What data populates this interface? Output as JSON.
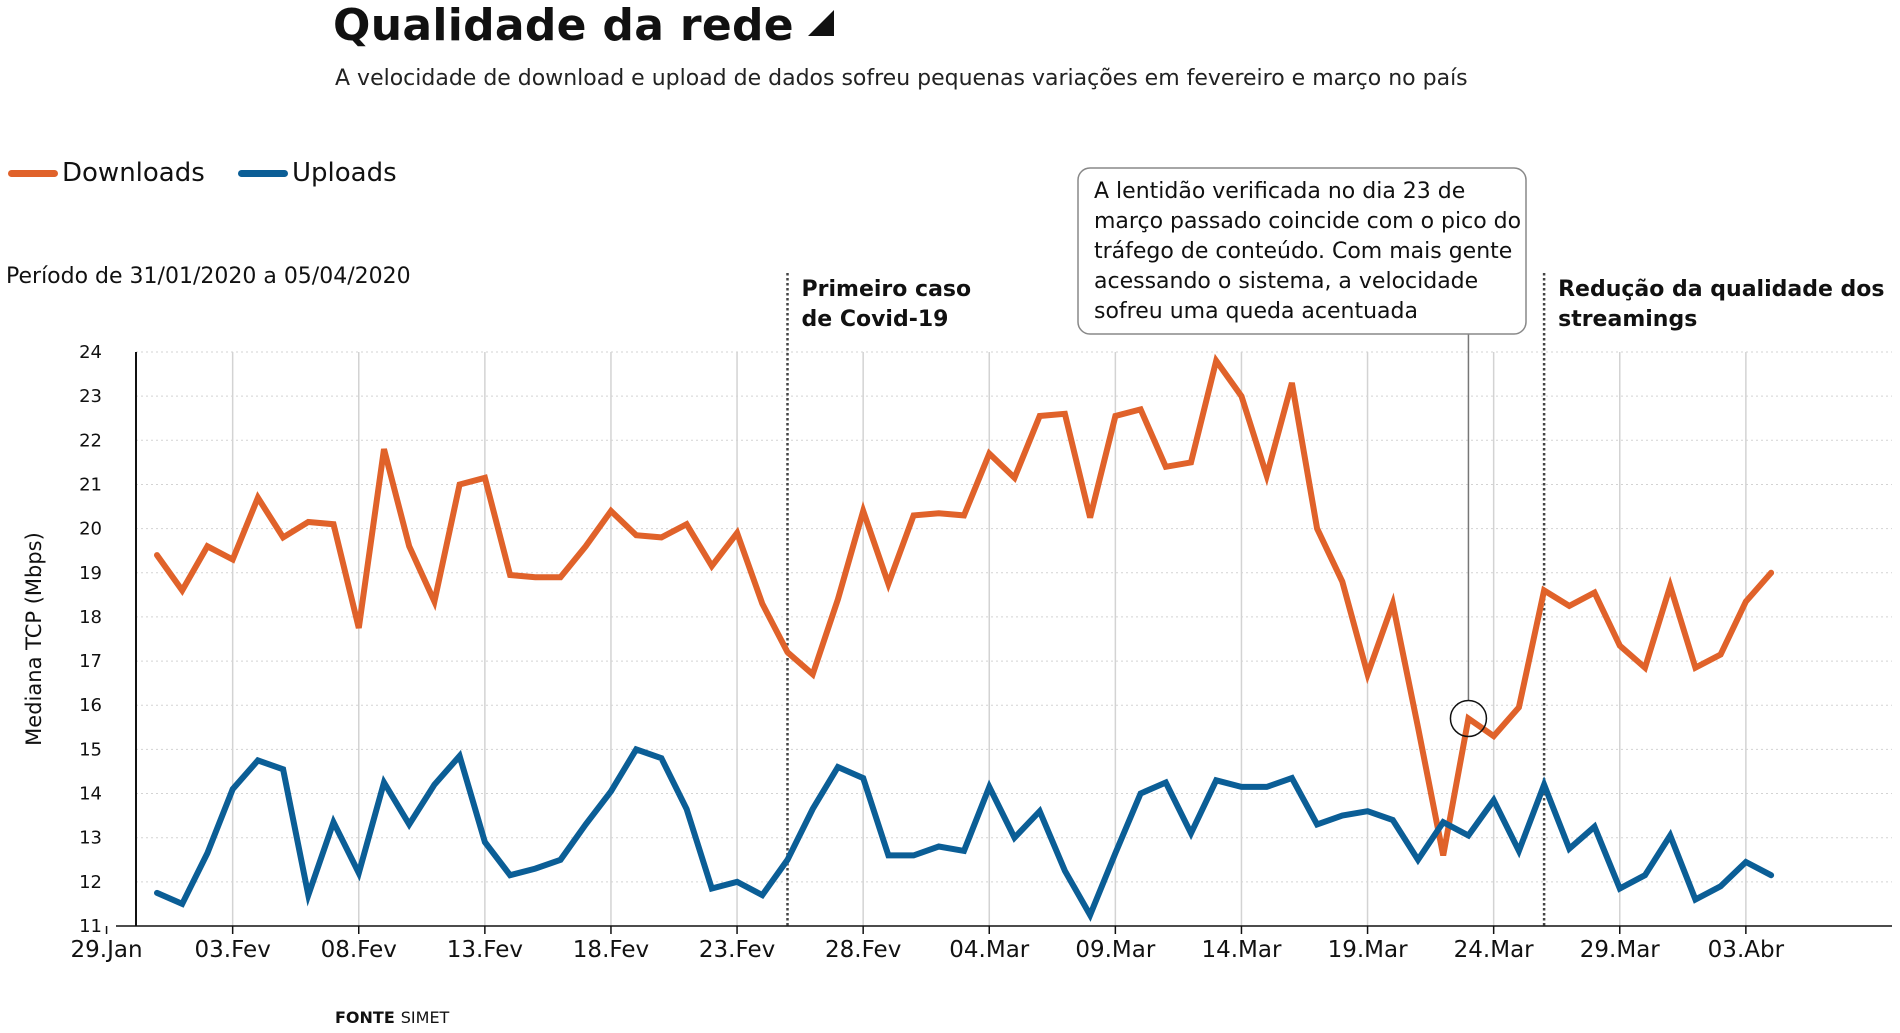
{
  "header": {
    "title": "Qualidade da rede",
    "subtitle": "A velocidade de download e upload de dados sofreu pequenas variações em fevereiro e março no país"
  },
  "legend": {
    "downloads": "Downloads",
    "uploads": "Uploads"
  },
  "period_label": "Período de 31/01/2020 a 05/04/2020",
  "source": {
    "label": "FONTE",
    "value": "SIMET"
  },
  "colors": {
    "downloads": "#e0622a",
    "uploads": "#0b5e96",
    "grid": "#d3d3d3"
  },
  "annotations": {
    "first_case": [
      "Primeiro caso",
      "de Covid-19"
    ],
    "reduction": [
      "Redução da qualidade dos",
      "streamings"
    ],
    "callout": [
      "A lentidão verificada no dia 23 de",
      "março passado coincide com o pico do",
      "tráfego de conteúdo. Com mais gente",
      "acessando o sistema, a velocidade",
      "sofreu uma queda acentuada"
    ]
  },
  "chart_data": {
    "type": "line",
    "x_start": "2020-01-31",
    "x_tick_labels": [
      "29.Jan",
      "03.Fev",
      "08.Fev",
      "13.Fev",
      "18.Fev",
      "23.Fev",
      "28.Fev",
      "04.Mar",
      "09.Mar",
      "14.Mar",
      "19.Mar",
      "24.Mar",
      "29.Mar",
      "03.Abr"
    ],
    "y_tick_labels": [
      "11",
      "12",
      "13",
      "14",
      "15",
      "16",
      "17",
      "18",
      "19",
      "20",
      "21",
      "22",
      "23",
      "24"
    ],
    "ylim": [
      11,
      24
    ],
    "ylabel": "Mediana TCP (Mbps)",
    "markers": [
      {
        "date": "2020-02-25",
        "label": "first_case"
      },
      {
        "date": "2020-03-26",
        "label": "reduction"
      }
    ],
    "highlight_point": {
      "date": "2020-03-23",
      "value": 15.7
    },
    "series": [
      {
        "name": "Downloads",
        "values": [
          19.4,
          18.6,
          19.6,
          19.3,
          20.7,
          19.8,
          20.15,
          20.1,
          17.75,
          21.8,
          19.6,
          18.35,
          21.0,
          21.15,
          18.95,
          18.9,
          18.9,
          19.6,
          20.4,
          19.85,
          19.8,
          20.1,
          19.15,
          19.9,
          18.3,
          17.2,
          16.7,
          18.4,
          20.4,
          18.75,
          20.3,
          20.35,
          20.3,
          21.7,
          21.15,
          22.55,
          22.6,
          20.25,
          22.55,
          22.7,
          21.4,
          21.5,
          23.8,
          23.0,
          21.2,
          23.3,
          20.0,
          18.8,
          16.7,
          18.3,
          15.5,
          12.6,
          15.7,
          15.3,
          15.95,
          18.6,
          18.25,
          18.55,
          17.35,
          16.85,
          18.7,
          16.85,
          17.15,
          18.35,
          19.0
        ]
      },
      {
        "name": "Uploads",
        "values": [
          11.75,
          11.5,
          12.65,
          14.1,
          14.75,
          14.55,
          11.7,
          13.35,
          12.2,
          14.25,
          13.3,
          14.2,
          14.85,
          12.9,
          12.15,
          12.3,
          12.5,
          13.3,
          14.05,
          15.0,
          14.8,
          13.65,
          11.85,
          12.0,
          11.7,
          12.5,
          13.65,
          14.6,
          14.35,
          12.6,
          12.6,
          12.8,
          12.7,
          14.15,
          13.0,
          13.6,
          12.25,
          11.25,
          12.65,
          14.0,
          14.25,
          13.1,
          14.3,
          14.15,
          14.15,
          14.35,
          13.3,
          13.5,
          13.6,
          13.4,
          12.5,
          13.35,
          13.05,
          13.85,
          12.7,
          14.2,
          12.75,
          13.25,
          11.85,
          12.15,
          13.05,
          11.6,
          11.9,
          12.45,
          12.15
        ]
      }
    ]
  }
}
